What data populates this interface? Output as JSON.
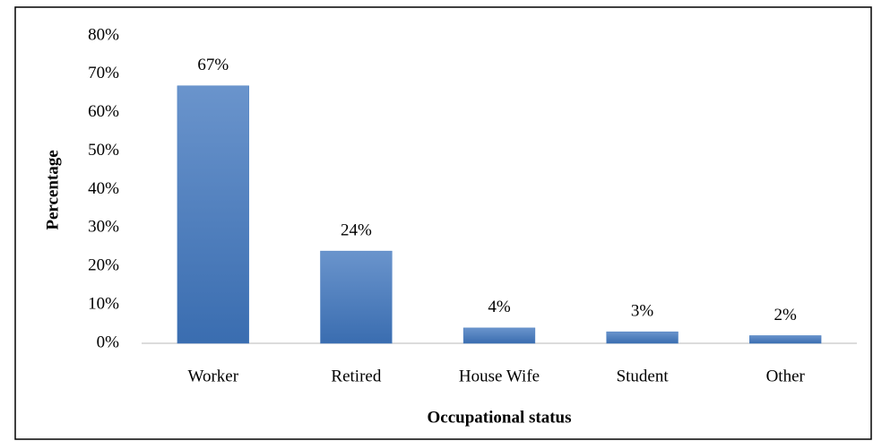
{
  "chart_data": {
    "type": "bar",
    "x_label": "Occupational status",
    "y_label": "Percentage",
    "categories": [
      "Worker",
      "Retired",
      "House Wife",
      "Student",
      "Other"
    ],
    "values": [
      67,
      24,
      4,
      3,
      2
    ],
    "value_labels": [
      "67%",
      "24%",
      "4%",
      "3%",
      "2%"
    ],
    "color": "#4a7ebf",
    "ylim": [
      0,
      80
    ],
    "yticks": [
      {
        "value": 0,
        "label": "0%"
      },
      {
        "value": 10,
        "label": "10%"
      },
      {
        "value": 20,
        "label": "20%"
      },
      {
        "value": 30,
        "label": "30%"
      },
      {
        "value": 40,
        "label": "40%"
      },
      {
        "value": 50,
        "label": "50%"
      },
      {
        "value": 60,
        "label": "60%"
      },
      {
        "value": 70,
        "label": "70%"
      },
      {
        "value": 80,
        "label": "80%"
      }
    ],
    "grid": false
  }
}
